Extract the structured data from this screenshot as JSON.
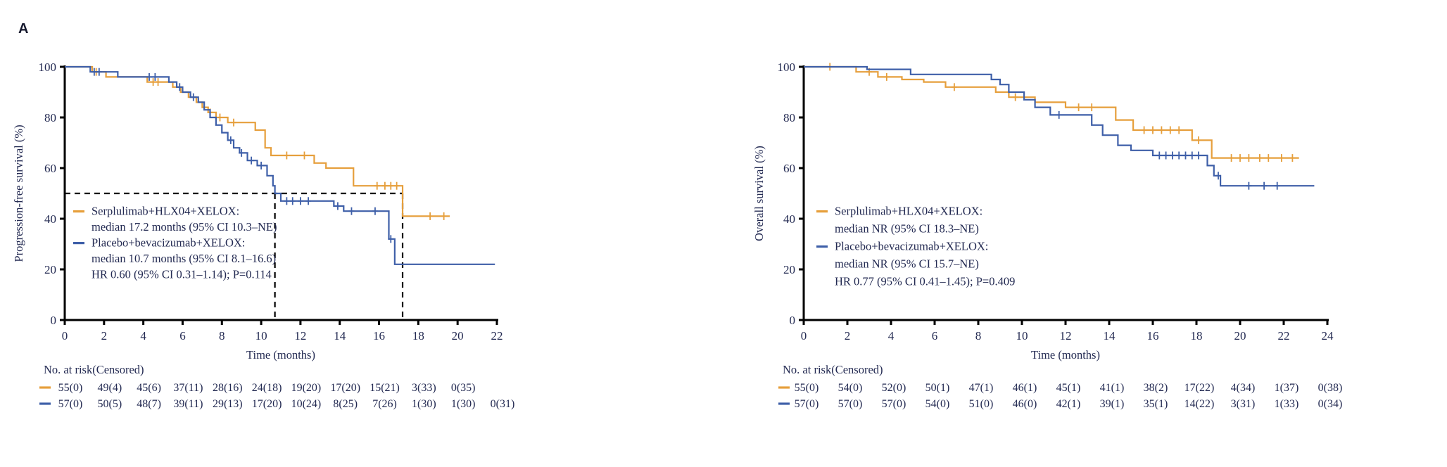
{
  "figure": {
    "panel_label": "A",
    "text_color": "#232a52",
    "axis_color": "#000000",
    "orange": "#e69f3c",
    "blue": "#3e5fa8"
  },
  "chart_data": [
    {
      "type": "line",
      "subtype": "kaplan-meier-step",
      "title": "",
      "xlabel": "Time (months)",
      "ylabel": "Progression-free survival (%)",
      "xlim": [
        0,
        22
      ],
      "ylim": [
        0,
        100
      ],
      "xticks": [
        0,
        2,
        4,
        6,
        8,
        10,
        12,
        14,
        16,
        18,
        20,
        22
      ],
      "yticks": [
        0,
        20,
        40,
        60,
        80,
        100
      ],
      "grid": false,
      "legend": {
        "position": "inside-lower-left",
        "entries": [
          {
            "color": "#e69f3c",
            "lines": [
              "Serplulimab+HLX04+XELOX:",
              "median 17.2 months (95% CI 10.3–NE)"
            ]
          },
          {
            "color": "#3e5fa8",
            "lines": [
              "Placebo+bevacizumab+XELOX:",
              "median 10.7 months (95% CI 8.1–16.6)",
              "HR 0.60 (95% CI 0.31–1.14); P=0.114"
            ]
          }
        ]
      },
      "reference": {
        "y_value": 50,
        "y_line_x_end": 17.2,
        "vertical_lines_x": [
          10.7,
          17.2
        ]
      },
      "series": [
        {
          "name": "Serplulimab+HLX04+XELOX",
          "color": "#e69f3c",
          "end": 19.6,
          "steps": [
            [
              1.4,
              98
            ],
            [
              2.1,
              96
            ],
            [
              4.2,
              94
            ],
            [
              5.5,
              92
            ],
            [
              5.9,
              90
            ],
            [
              6.3,
              88
            ],
            [
              6.7,
              86
            ],
            [
              7.0,
              84
            ],
            [
              7.3,
              82
            ],
            [
              7.7,
              80
            ],
            [
              8.3,
              78
            ],
            [
              9.7,
              75
            ],
            [
              10.2,
              68
            ],
            [
              10.5,
              65
            ],
            [
              12.7,
              62
            ],
            [
              13.3,
              60
            ],
            [
              14.7,
              53
            ],
            [
              17.2,
              41
            ]
          ],
          "censors": [
            [
              1.6,
              98
            ],
            [
              4.5,
              94
            ],
            [
              4.75,
              94
            ],
            [
              7.4,
              82
            ],
            [
              7.9,
              80
            ],
            [
              8.6,
              78
            ],
            [
              11.3,
              65
            ],
            [
              12.2,
              65
            ],
            [
              15.9,
              53
            ],
            [
              16.3,
              53
            ],
            [
              16.6,
              53
            ],
            [
              16.9,
              53
            ],
            [
              18.6,
              41
            ],
            [
              19.3,
              41
            ]
          ]
        },
        {
          "name": "Placebo+bevacizumab+XELOX",
          "color": "#3e5fa8",
          "end": 21.9,
          "steps": [
            [
              1.3,
              98
            ],
            [
              2.7,
              96
            ],
            [
              5.3,
              94
            ],
            [
              5.7,
              92
            ],
            [
              6.0,
              90
            ],
            [
              6.4,
              88
            ],
            [
              6.8,
              86
            ],
            [
              7.1,
              83
            ],
            [
              7.4,
              80
            ],
            [
              7.7,
              77
            ],
            [
              8.0,
              74
            ],
            [
              8.3,
              71
            ],
            [
              8.6,
              68
            ],
            [
              8.9,
              66
            ],
            [
              9.3,
              63
            ],
            [
              9.8,
              61
            ],
            [
              10.3,
              57
            ],
            [
              10.6,
              53
            ],
            [
              10.7,
              50
            ],
            [
              11.0,
              47
            ],
            [
              13.7,
              45
            ],
            [
              14.2,
              43
            ],
            [
              16.5,
              32
            ],
            [
              16.8,
              22
            ]
          ],
          "censors": [
            [
              1.5,
              98
            ],
            [
              1.75,
              98
            ],
            [
              4.3,
              96
            ],
            [
              4.6,
              96
            ],
            [
              5.85,
              92
            ],
            [
              6.55,
              88
            ],
            [
              8.45,
              71
            ],
            [
              9.0,
              66
            ],
            [
              9.5,
              63
            ],
            [
              10.0,
              61
            ],
            [
              11.3,
              47
            ],
            [
              11.6,
              47
            ],
            [
              12.0,
              47
            ],
            [
              12.4,
              47
            ],
            [
              13.9,
              45
            ],
            [
              14.6,
              43
            ],
            [
              15.8,
              43
            ],
            [
              16.6,
              32
            ]
          ]
        }
      ],
      "risk_table": {
        "header": "No. at risk(Censored)",
        "times": [
          0,
          2,
          4,
          6,
          8,
          10,
          12,
          14,
          16,
          18,
          20,
          22
        ],
        "rows": [
          {
            "name": "Serplulimab+HLX04+XELOX",
            "color": "#e69f3c",
            "values": [
              "55(0)",
              "49(4)",
              "45(6)",
              "37(11)",
              "28(16)",
              "24(18)",
              "19(20)",
              "17(20)",
              "15(21)",
              "3(33)",
              "0(35)",
              ""
            ]
          },
          {
            "name": "Placebo+bevacizumab+XELOX",
            "color": "#3e5fa8",
            "values": [
              "57(0)",
              "50(5)",
              "48(7)",
              "39(11)",
              "29(13)",
              "17(20)",
              "10(24)",
              "8(25)",
              "7(26)",
              "1(30)",
              "1(30)",
              "0(31)"
            ]
          }
        ]
      }
    },
    {
      "type": "line",
      "subtype": "kaplan-meier-step",
      "title": "",
      "xlabel": "Time (months)",
      "ylabel": "Overall survival (%)",
      "xlim": [
        0,
        24
      ],
      "ylim": [
        0,
        100
      ],
      "xticks": [
        0,
        2,
        4,
        6,
        8,
        10,
        12,
        14,
        16,
        18,
        20,
        22,
        24
      ],
      "yticks": [
        0,
        20,
        40,
        60,
        80,
        100
      ],
      "grid": false,
      "legend": {
        "position": "inside-lower-left",
        "entries": [
          {
            "color": "#e69f3c",
            "lines": [
              "Serplulimab+HLX04+XELOX:",
              "median NR (95% CI 18.3–NE)"
            ]
          },
          {
            "color": "#3e5fa8",
            "lines": [
              "Placebo+bevacizumab+XELOX:",
              "median NR (95% CI 15.7–NE)",
              "HR 0.77 (95% CI 0.41–1.45); P=0.409"
            ]
          }
        ]
      },
      "reference": null,
      "series": [
        {
          "name": "Serplulimab+HLX04+XELOX",
          "color": "#e69f3c",
          "end": 22.7,
          "steps": [
            [
              2.4,
              98
            ],
            [
              3.4,
              96
            ],
            [
              4.5,
              95
            ],
            [
              5.5,
              94
            ],
            [
              6.5,
              92
            ],
            [
              8.8,
              90
            ],
            [
              9.4,
              88
            ],
            [
              10.6,
              86
            ],
            [
              12.0,
              84
            ],
            [
              14.3,
              79
            ],
            [
              15.1,
              75
            ],
            [
              17.8,
              71
            ],
            [
              18.7,
              64
            ]
          ],
          "censors": [
            [
              1.2,
              100
            ],
            [
              3.0,
              98
            ],
            [
              3.8,
              96
            ],
            [
              6.9,
              92
            ],
            [
              9.7,
              88
            ],
            [
              12.6,
              84
            ],
            [
              13.2,
              84
            ],
            [
              15.6,
              75
            ],
            [
              16.0,
              75
            ],
            [
              16.4,
              75
            ],
            [
              16.8,
              75
            ],
            [
              17.2,
              75
            ],
            [
              18.1,
              71
            ],
            [
              19.6,
              64
            ],
            [
              20.0,
              64
            ],
            [
              20.4,
              64
            ],
            [
              20.9,
              64
            ],
            [
              21.3,
              64
            ],
            [
              21.9,
              64
            ],
            [
              22.4,
              64
            ]
          ]
        },
        {
          "name": "Placebo+bevacizumab+XELOX",
          "color": "#3e5fa8",
          "end": 23.4,
          "steps": [
            [
              2.9,
              99
            ],
            [
              4.9,
              97
            ],
            [
              8.6,
              95
            ],
            [
              9.0,
              93
            ],
            [
              9.4,
              90
            ],
            [
              10.1,
              87
            ],
            [
              10.6,
              84
            ],
            [
              11.3,
              81
            ],
            [
              13.2,
              77
            ],
            [
              13.7,
              73
            ],
            [
              14.4,
              69
            ],
            [
              15.0,
              67
            ],
            [
              16.0,
              65
            ],
            [
              18.5,
              61
            ],
            [
              18.8,
              57
            ],
            [
              19.1,
              53
            ]
          ],
          "censors": [
            [
              11.7,
              81
            ],
            [
              16.3,
              65
            ],
            [
              16.6,
              65
            ],
            [
              16.9,
              65
            ],
            [
              17.2,
              65
            ],
            [
              17.5,
              65
            ],
            [
              17.8,
              65
            ],
            [
              18.1,
              65
            ],
            [
              19.0,
              57
            ],
            [
              20.4,
              53
            ],
            [
              21.1,
              53
            ],
            [
              21.7,
              53
            ]
          ]
        }
      ],
      "risk_table": {
        "header": "No. at risk(Censored)",
        "times": [
          0,
          2,
          4,
          6,
          8,
          10,
          12,
          14,
          16,
          18,
          20,
          22,
          24
        ],
        "rows": [
          {
            "name": "Serplulimab+HLX04+XELOX",
            "color": "#e69f3c",
            "values": [
              "55(0)",
              "54(0)",
              "52(0)",
              "50(1)",
              "47(1)",
              "46(1)",
              "45(1)",
              "41(1)",
              "38(2)",
              "17(22)",
              "4(34)",
              "1(37)",
              "0(38)"
            ]
          },
          {
            "name": "Placebo+bevacizumab+XELOX",
            "color": "#3e5fa8",
            "values": [
              "57(0)",
              "57(0)",
              "57(0)",
              "54(0)",
              "51(0)",
              "46(0)",
              "42(1)",
              "39(1)",
              "35(1)",
              "14(22)",
              "3(31)",
              "1(33)",
              "0(34)"
            ]
          }
        ]
      }
    }
  ]
}
